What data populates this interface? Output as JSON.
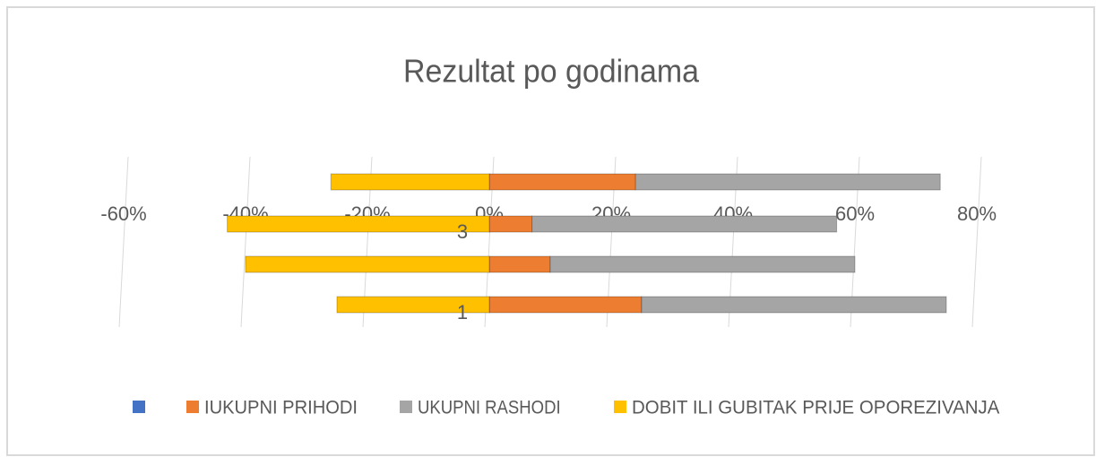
{
  "chart_data": {
    "type": "bar",
    "orientation": "horizontal",
    "stacked": true,
    "title": "Rezultat po godinama",
    "categories": [
      "1",
      null,
      "3",
      null
    ],
    "series": [
      {
        "name": null,
        "color": "#4472c4",
        "values": [
          0,
          0,
          0,
          0
        ]
      },
      {
        "name": "IUKUPNI PRIHODI",
        "color": "#ed7d31",
        "values": [
          25,
          10,
          7,
          24
        ]
      },
      {
        "name": "UKUPNI RASHODI",
        "color": "#a5a5a5",
        "values": [
          50,
          50,
          50,
          50
        ]
      },
      {
        "name": "DOBIT ILI GUBITAK PRIJE OPOREZIVANJA",
        "color": "#ffc000",
        "values": [
          -25,
          -40,
          -43,
          -26
        ]
      }
    ],
    "xlim": [
      -60,
      80
    ],
    "xticks": [
      {
        "value": -60,
        "label": "-60%"
      },
      {
        "value": -40,
        "label": "-40%"
      },
      {
        "value": -20,
        "label": "-20%"
      },
      {
        "value": 0,
        "label": "0%"
      },
      {
        "value": 20,
        "label": "20%"
      },
      {
        "value": 40,
        "label": "40%"
      },
      {
        "value": 60,
        "label": "60%"
      },
      {
        "value": 80,
        "label": "80%"
      }
    ],
    "grid": true,
    "legend": "bottom"
  }
}
